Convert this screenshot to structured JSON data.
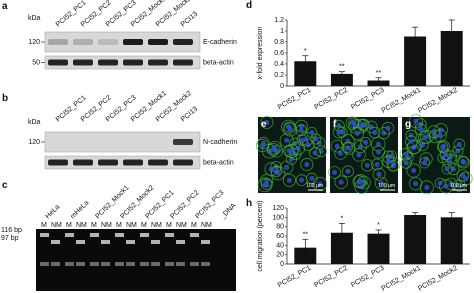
{
  "blots": [
    {
      "label": "a",
      "unit": "kDa",
      "lanes": [
        "PCI52_PC1",
        "PCI52_PC2",
        "PCI52_PC3",
        "PCI52_Mock1",
        "PCI52_Mock2",
        "PCI13"
      ],
      "rows": [
        {
          "marker": "120",
          "protein": "E-cadherin"
        },
        {
          "marker": "50",
          "protein": "beta-actin"
        }
      ]
    },
    {
      "label": "b",
      "unit": "kDa",
      "lanes": [
        "PCI52_PC1",
        "PCI52_PC2",
        "PCI52_PC3",
        "PCI52_Mock1",
        "PCI52_Mock2",
        "PCI13"
      ],
      "rows": [
        {
          "marker": "120",
          "protein": "N-cadherin"
        },
        {
          "protein": "beta-actin"
        }
      ]
    }
  ],
  "gel": {
    "label": "c",
    "lanes": [
      "HeLa",
      "mHeLa",
      "PCI52_Mock1",
      "PCI52_Mock2",
      "PCI52_PC1",
      "PCI52_PC2",
      "PCI52_PC3",
      "_DNA"
    ],
    "sublanes": [
      "M",
      "NM"
    ],
    "markers": [
      "116 bp",
      "97 bp"
    ]
  },
  "images": [
    {
      "label": "e",
      "scale": "100 µm"
    },
    {
      "label": "f",
      "scale": "100 µm"
    },
    {
      "label": "g",
      "scale": "100 µm"
    }
  ],
  "chart_data": [
    {
      "type": "bar",
      "label": "d",
      "ylabel": "x-fold expression",
      "categories": [
        "PCI52_PC1",
        "PCI52_PC2",
        "PCI52_PC3",
        "PCI52_Mock1",
        "PCI52_Mock2"
      ],
      "values": [
        0.45,
        0.22,
        0.1,
        0.9,
        1.0
      ],
      "errors": [
        0.1,
        0.04,
        0.05,
        0.17,
        0.2
      ],
      "annotations": [
        "*",
        "**",
        "**",
        null,
        null
      ],
      "color": "#111111",
      "ylim": [
        0,
        1.2
      ],
      "yticks": [
        0,
        0.2,
        0.4,
        0.6,
        0.8,
        1,
        1.2
      ]
    },
    {
      "type": "bar",
      "label": "h",
      "ylabel": "cell migration (percent)",
      "categories": [
        "PCI52_PC1",
        "PCI52_PC2",
        "PCI52_PC3",
        "PCI52_Mock1",
        "PCI52_Mock2"
      ],
      "values": [
        35,
        67,
        65,
        105,
        100
      ],
      "errors": [
        18,
        20,
        8,
        5,
        10
      ],
      "annotations": [
        "**",
        "*",
        "*",
        null,
        null
      ],
      "color": "#111111",
      "ylim": [
        0,
        120
      ],
      "yticks": [
        0,
        20,
        40,
        60,
        80,
        100,
        120
      ]
    }
  ]
}
